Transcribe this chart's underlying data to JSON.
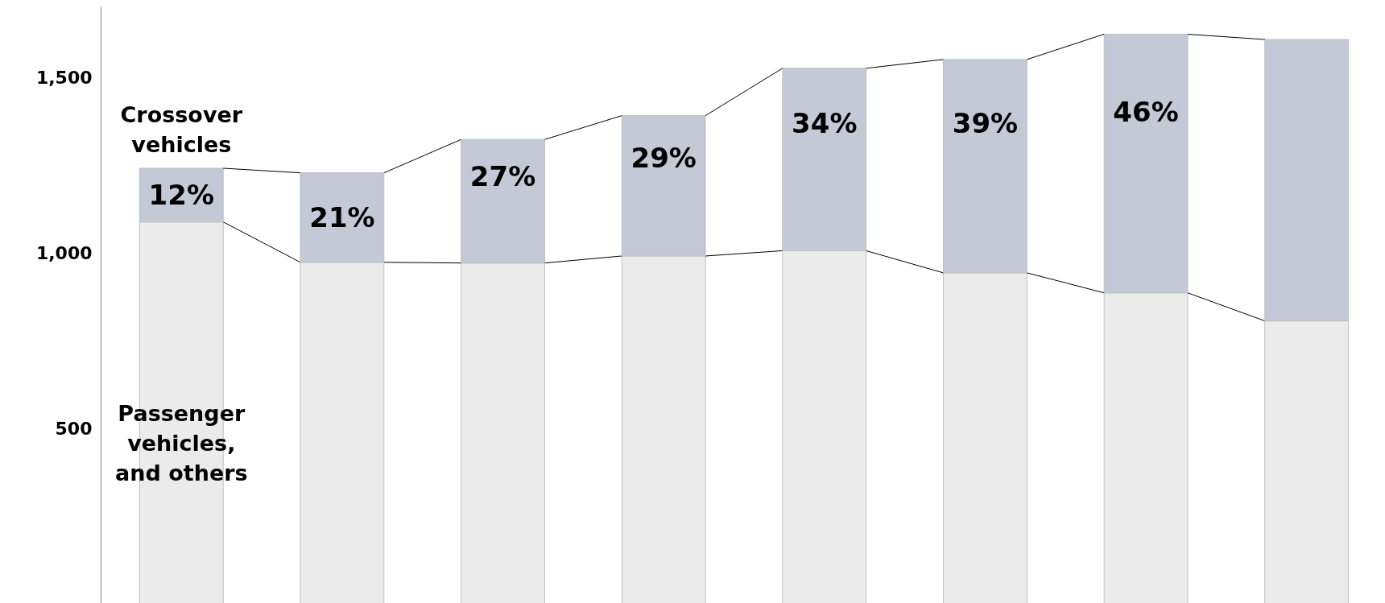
{
  "chart_data": {
    "type": "bar",
    "stacked": true,
    "categories": [
      null,
      null,
      null,
      null,
      null,
      null,
      null,
      null
    ],
    "series": [
      {
        "name": "Passenger vehicles, and others",
        "color": "#ebebeb",
        "values": [
          1087,
          972,
          970,
          990,
          1005,
          942,
          885,
          805
        ]
      },
      {
        "name": "Crossover vehicles",
        "color": "#c3c9d6",
        "values": [
          153,
          255,
          352,
          400,
          520,
          608,
          737,
          802
        ]
      }
    ],
    "annotations": [
      "12%",
      "21%",
      "27%",
      "29%",
      "34%",
      "39%",
      "46%"
    ],
    "ylim": [
      0,
      1700
    ],
    "yticks": [
      500,
      {
        "value": 1000,
        "label": "1,000"
      },
      {
        "value": 1500,
        "label": "1,500"
      }
    ],
    "tick_labels": "y",
    "grid": false
  }
}
